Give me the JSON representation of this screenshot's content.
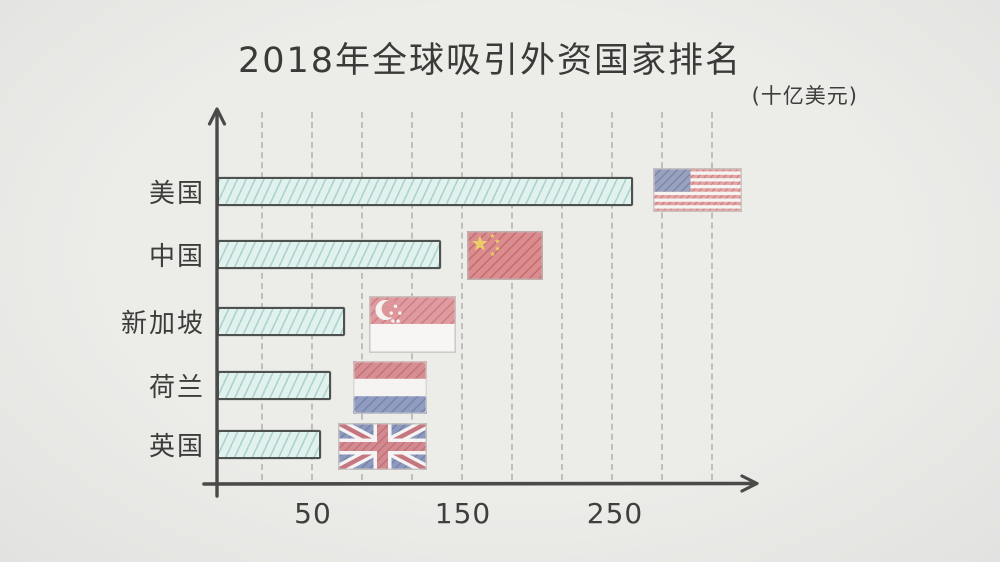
{
  "page": {
    "background_color": "#e9e9e7"
  },
  "chart": {
    "title": "2018年全球吸引外资国家排名",
    "unit_label": "(十亿美元)"
  },
  "chart_data": {
    "type": "bar",
    "orientation": "horizontal",
    "title": "2018年全球吸引外资国家排名",
    "unit": "十亿美元",
    "categories": [
      "美国",
      "中国",
      "新加坡",
      "荷兰",
      "英国"
    ],
    "values": [
      260,
      140,
      80,
      71,
      65
    ],
    "x_ticks": [
      "50",
      "150",
      "250"
    ],
    "x_tick_values": [
      50,
      150,
      250
    ],
    "xlim": [
      0,
      340
    ],
    "grid": "vertical-dashed",
    "legend": "none",
    "flag_icons": [
      "usa-flag-icon",
      "china-flag-icon",
      "singapore-flag-icon",
      "netherlands-flag-icon",
      "uk-flag-icon"
    ],
    "colors": {
      "bar_fill": "#e0f1ee",
      "bar_hatch": "#7db4ae",
      "bar_border": "#4d524f",
      "axis": "#4a4a48",
      "gridline": "#b7b7b4",
      "text": "#3c3c3a",
      "background": "#e9e9e7"
    }
  }
}
